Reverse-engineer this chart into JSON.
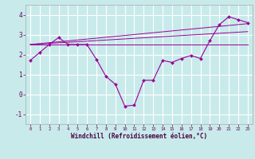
{
  "xlabel": "Windchill (Refroidissement éolien,°C)",
  "background_color": "#c8eaea",
  "grid_color": "#b0d8d8",
  "line_color": "#990099",
  "x_hours": [
    0,
    1,
    2,
    3,
    4,
    5,
    6,
    7,
    8,
    9,
    10,
    11,
    12,
    13,
    14,
    15,
    16,
    17,
    18,
    19,
    20,
    21,
    22,
    23
  ],
  "windchill": [
    1.7,
    2.1,
    2.5,
    2.85,
    2.5,
    2.5,
    2.5,
    1.75,
    0.9,
    0.5,
    -0.6,
    -0.55,
    0.7,
    0.7,
    1.7,
    1.6,
    1.8,
    1.95,
    1.8,
    2.7,
    3.5,
    3.9,
    3.75,
    3.6
  ],
  "line1_x": [
    0,
    23
  ],
  "line1_y": [
    2.5,
    2.5
  ],
  "line2_x": [
    0,
    23
  ],
  "line2_y": [
    2.5,
    3.15
  ],
  "line3_x": [
    0,
    23
  ],
  "line3_y": [
    2.5,
    3.55
  ],
  "ylim": [
    -1.5,
    4.5
  ],
  "xlim": [
    -0.5,
    23.5
  ],
  "yticks": [
    -1,
    0,
    1,
    2,
    3,
    4
  ],
  "xticks": [
    0,
    1,
    2,
    3,
    4,
    5,
    6,
    7,
    8,
    9,
    10,
    11,
    12,
    13,
    14,
    15,
    16,
    17,
    18,
    19,
    20,
    21,
    22,
    23
  ]
}
